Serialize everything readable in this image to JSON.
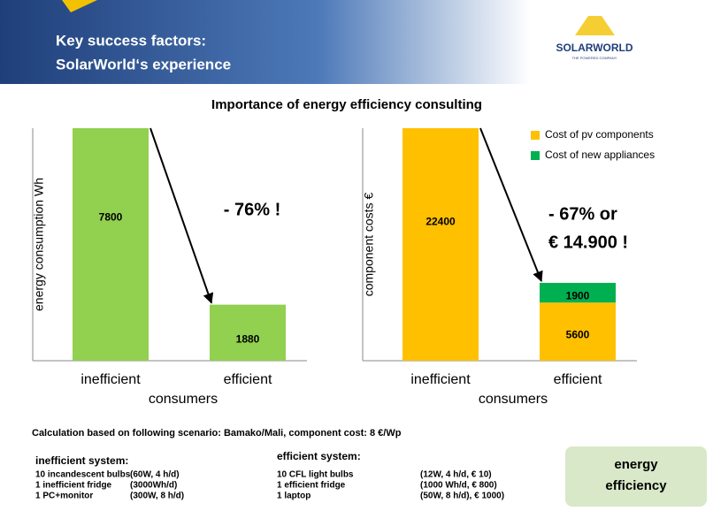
{
  "header": {
    "title_lines": [
      "Key success factors:",
      "SolarWorld‘s experience"
    ],
    "logo": "SOLARWORLD",
    "logo_tagline": "THE POWERED COMPANY"
  },
  "subtitle": "Importance of energy efficiency consulting",
  "chart_data": [
    {
      "type": "bar",
      "categories": [
        "inefficient",
        "efficient"
      ],
      "values": [
        7800,
        1880
      ],
      "color": "#92d050",
      "ylabel": "energy consumption Wh",
      "xlabel": "consumers",
      "ylim": [
        0,
        7800
      ],
      "annotation": "- 76% !"
    },
    {
      "type": "stacked_bar",
      "categories": [
        "inefficient",
        "efficient"
      ],
      "series": [
        {
          "name": "Cost of pv components",
          "color": "#ffc000",
          "values": [
            22400,
            5600
          ]
        },
        {
          "name": "Cost of new appliances",
          "color": "#00b050",
          "values": [
            null,
            1900
          ]
        }
      ],
      "ylabel": "component costs €",
      "xlabel": "consumers",
      "ylim": [
        0,
        22400
      ],
      "annotation_lines": [
        "- 67% or",
        "€ 14.900 !"
      ]
    }
  ],
  "scenario": "Calculation based on following scenario: Bamako/Mali, component cost: 8 €/Wp",
  "inefficient_system": {
    "title": "inefficient system:",
    "rows": [
      [
        "10 incandescent bulbs",
        "(60W, 4 h/d)"
      ],
      [
        "1 inefficient fridge",
        "(3000Wh/d)"
      ],
      [
        "1 PC+monitor",
        "(300W, 8 h/d)"
      ]
    ]
  },
  "efficient_system": {
    "title": "efficient system:",
    "rows": [
      [
        "10 CFL light bulbs",
        "(12W, 4 h/d, € 10)"
      ],
      [
        "1 efficient fridge",
        "(1000 Wh/d, € 800)"
      ],
      [
        "1 laptop",
        "(50W, 8 h/d), € 1000)"
      ]
    ]
  },
  "badge": "energy efficiency"
}
